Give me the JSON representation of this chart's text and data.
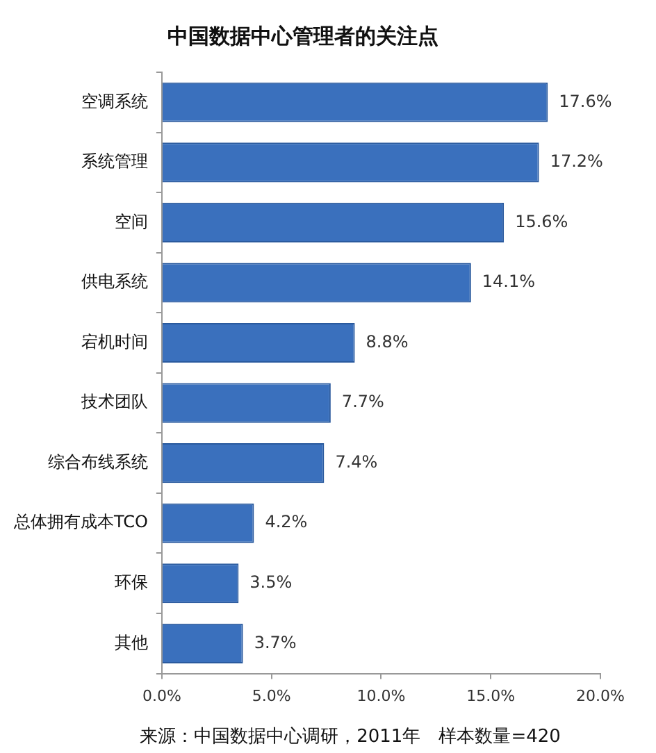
{
  "chart_data": {
    "type": "bar",
    "orientation": "horizontal",
    "title": "中国数据中心管理者的关注点",
    "categories": [
      "空调系统",
      "系统管理",
      "空间",
      "供电系统",
      "宕机时间",
      "技术团队",
      "综合布线系统",
      "总体拥有成本TCO",
      "环保",
      "其他"
    ],
    "values": [
      17.6,
      17.2,
      15.6,
      14.1,
      8.8,
      7.7,
      7.4,
      4.2,
      3.5,
      3.7
    ],
    "value_labels": [
      "17.6%",
      "17.2%",
      "15.6%",
      "14.1%",
      "8.8%",
      "7.7%",
      "7.4%",
      "4.2%",
      "3.5%",
      "3.7%"
    ],
    "color": "#3a70bd",
    "xlim": [
      0,
      20
    ],
    "xticks": [
      {
        "value": 0,
        "label": "0.0%"
      },
      {
        "value": 5,
        "label": "5.0%"
      },
      {
        "value": 10,
        "label": "10.0%"
      },
      {
        "value": 15,
        "label": "15.0%"
      },
      {
        "value": 20,
        "label": "20.0%"
      }
    ],
    "grid": false,
    "legend": false,
    "annotations": [
      "来源：中国数据中心调研，2011年　样本数量=420"
    ]
  }
}
